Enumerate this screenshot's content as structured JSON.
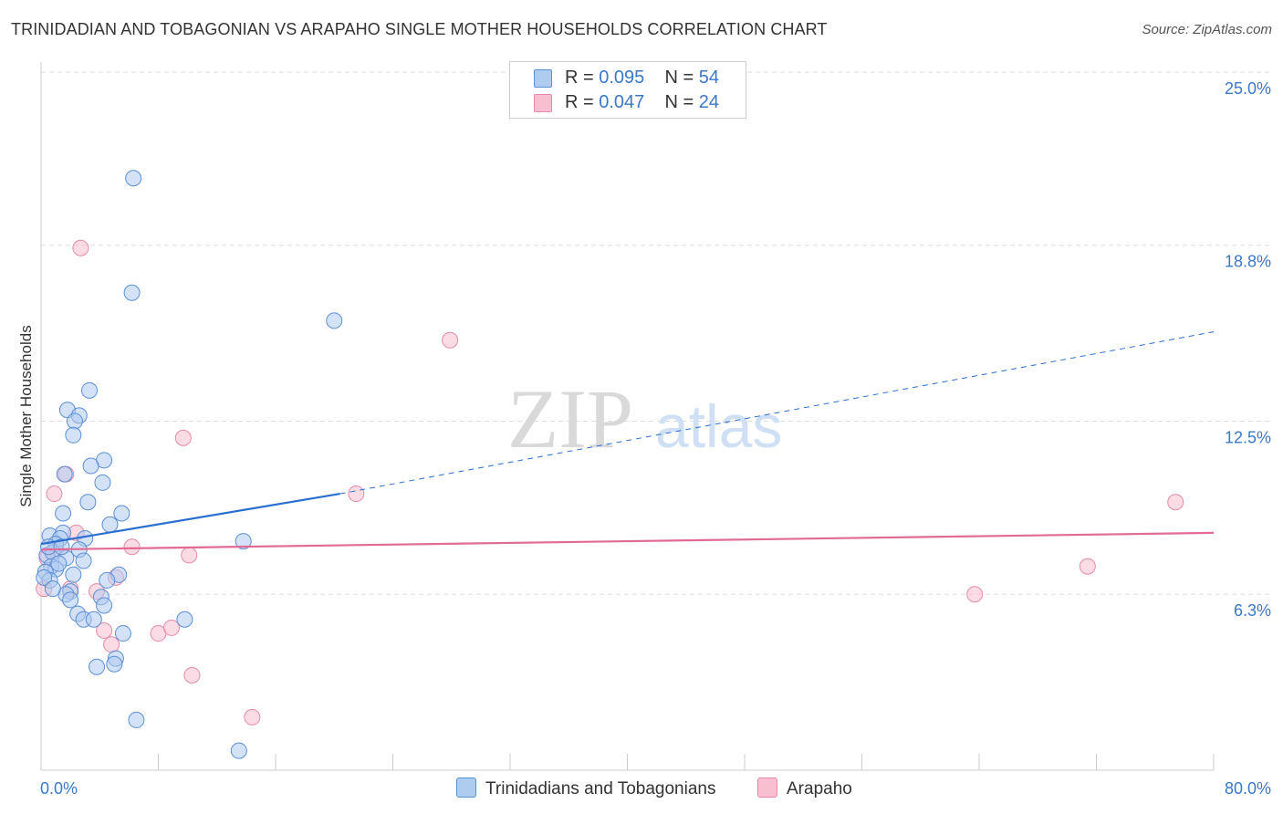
{
  "title": "TRINIDADIAN AND TOBAGONIAN VS ARAPAHO SINGLE MOTHER HOUSEHOLDS CORRELATION CHART",
  "source": "Source: ZipAtlas.com",
  "watermark": {
    "zip": "ZIP",
    "atlas": "atlas"
  },
  "legend": {
    "rows": [
      {
        "r_label": "R = ",
        "r_value": "0.095",
        "n_label": "N = ",
        "n_value": "54"
      },
      {
        "r_label": "R = ",
        "r_value": "0.047",
        "n_label": "N = ",
        "n_value": "24"
      }
    ]
  },
  "colors": {
    "blue_fill": "#aecbf0",
    "blue_stroke": "#5b8fd6",
    "blue_line": "#2a6fcf",
    "pink_fill": "#f7bfd0",
    "pink_stroke": "#e68aa8",
    "pink_line": "#e06b95",
    "grid": "#dddddd",
    "axis_label": "#3a78c9"
  },
  "chart_data": {
    "type": "scatter",
    "title": "TRINIDADIAN AND TOBAGONIAN VS ARAPAHO SINGLE MOTHER HOUSEHOLDS CORRELATION CHART",
    "xlabel": "",
    "ylabel": "Single Mother Households",
    "xlim": [
      0,
      80
    ],
    "ylim": [
      0,
      25
    ],
    "x_tick_labels": [
      "0.0%",
      "80.0%"
    ],
    "y_ticks": [
      6.3,
      12.5,
      18.8,
      25.0
    ],
    "y_tick_labels": [
      "6.3%",
      "12.5%",
      "18.8%",
      "25.0%"
    ],
    "grid": true,
    "legend_position": "top-center",
    "series": [
      {
        "name": "Trinidadians and Tobagonians",
        "color": "#aecbf0",
        "points": [
          [
            6.3,
            21.2
          ],
          [
            6.2,
            17.1
          ],
          [
            20.0,
            16.1
          ],
          [
            3.3,
            13.6
          ],
          [
            1.8,
            12.9
          ],
          [
            2.6,
            12.7
          ],
          [
            2.3,
            12.5
          ],
          [
            2.2,
            12.0
          ],
          [
            4.3,
            11.1
          ],
          [
            3.4,
            10.9
          ],
          [
            1.6,
            10.6
          ],
          [
            4.2,
            10.3
          ],
          [
            3.2,
            9.6
          ],
          [
            1.5,
            9.2
          ],
          [
            5.5,
            9.2
          ],
          [
            4.7,
            8.8
          ],
          [
            0.6,
            8.4
          ],
          [
            1.5,
            8.5
          ],
          [
            1.3,
            8.3
          ],
          [
            1.0,
            8.1
          ],
          [
            3.0,
            8.3
          ],
          [
            13.8,
            8.2
          ],
          [
            0.4,
            7.7
          ],
          [
            0.8,
            7.8
          ],
          [
            2.6,
            7.9
          ],
          [
            2.9,
            7.5
          ],
          [
            1.7,
            7.6
          ],
          [
            0.7,
            7.3
          ],
          [
            1.0,
            7.2
          ],
          [
            0.3,
            7.1
          ],
          [
            0.6,
            6.8
          ],
          [
            0.2,
            6.9
          ],
          [
            5.3,
            7.0
          ],
          [
            4.5,
            6.8
          ],
          [
            2.0,
            6.4
          ],
          [
            1.7,
            6.3
          ],
          [
            2.0,
            6.1
          ],
          [
            4.1,
            6.2
          ],
          [
            4.3,
            5.9
          ],
          [
            2.5,
            5.6
          ],
          [
            2.9,
            5.4
          ],
          [
            3.6,
            5.4
          ],
          [
            9.8,
            5.4
          ],
          [
            5.6,
            4.9
          ],
          [
            5.1,
            4.0
          ],
          [
            5.0,
            3.8
          ],
          [
            3.8,
            3.7
          ],
          [
            6.5,
            1.8
          ],
          [
            13.5,
            0.7
          ],
          [
            0.5,
            8.0
          ],
          [
            1.2,
            7.4
          ],
          [
            0.8,
            6.5
          ],
          [
            2.2,
            7.0
          ],
          [
            1.4,
            8.0
          ]
        ]
      },
      {
        "name": "Arapaho",
        "color": "#f7bfd0",
        "points": [
          [
            2.7,
            18.7
          ],
          [
            27.9,
            15.4
          ],
          [
            9.7,
            11.9
          ],
          [
            1.7,
            10.6
          ],
          [
            0.9,
            9.9
          ],
          [
            21.5,
            9.9
          ],
          [
            77.4,
            9.6
          ],
          [
            2.4,
            8.5
          ],
          [
            6.2,
            8.0
          ],
          [
            10.1,
            7.7
          ],
          [
            71.4,
            7.3
          ],
          [
            2.0,
            6.5
          ],
          [
            5.1,
            6.9
          ],
          [
            3.8,
            6.4
          ],
          [
            63.7,
            6.3
          ],
          [
            0.2,
            6.5
          ],
          [
            4.3,
            5.0
          ],
          [
            8.0,
            4.9
          ],
          [
            8.9,
            5.1
          ],
          [
            4.8,
            4.5
          ],
          [
            10.3,
            3.4
          ],
          [
            14.4,
            1.9
          ],
          [
            0.4,
            7.6
          ],
          [
            1.0,
            7.9
          ]
        ]
      }
    ],
    "trend_lines": [
      {
        "series": "Trinidadians and Tobagonians",
        "x0": 0,
        "y0": 8.1,
        "x1": 20.4,
        "y1": 9.9,
        "dashed_to_x": 80,
        "dashed_to_y": 15.7
      },
      {
        "series": "Arapaho",
        "x0": 0,
        "y0": 7.9,
        "x1": 80,
        "y1": 8.5
      }
    ]
  }
}
